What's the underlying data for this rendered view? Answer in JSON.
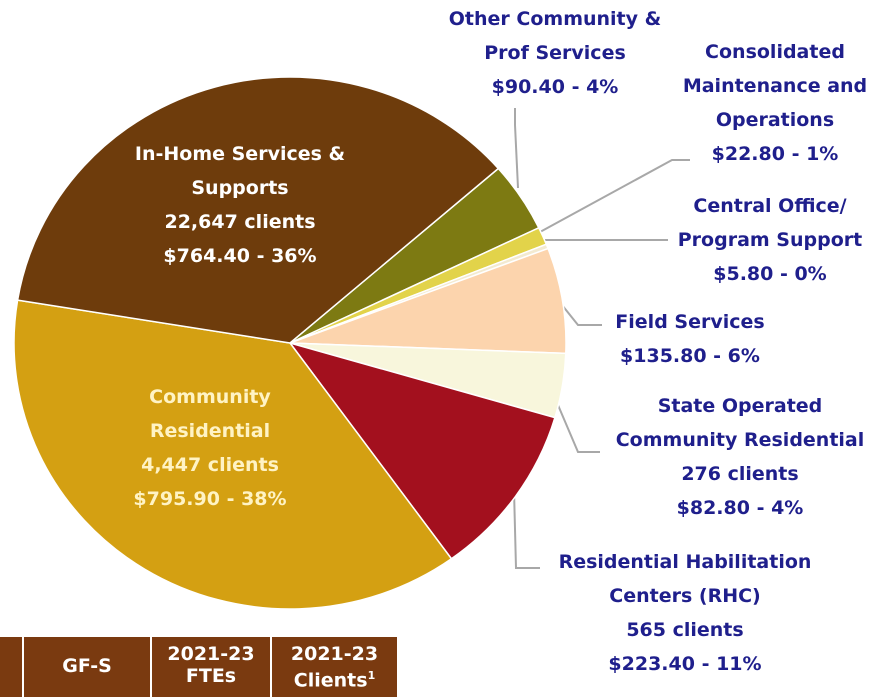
{
  "chart_data": {
    "type": "pie",
    "categories": [
      "Other Community & Prof Services",
      "Consolidated Maintenance and Operations",
      "Central Office/ Program Support",
      "Field Services",
      "State Operated Community Residential",
      "Residential Habilitation Centers (RHC)",
      "Community Residential",
      "In-Home Services & Supports"
    ],
    "values": [
      90.4,
      22.8,
      5.8,
      135.8,
      82.8,
      223.4,
      795.9,
      764.4
    ],
    "value_labels": [
      "$90.40 - 4%",
      "$22.80 - 1%",
      "$5.80 - 0%",
      "$135.80 - 6%",
      "$82.80 - 4%",
      "$223.40 - 11%",
      "$795.90 - 38%",
      "$764.40 - 36%"
    ],
    "client_labels": [
      null,
      null,
      null,
      null,
      "276 clients",
      "565 clients",
      "4,447 clients",
      "22,647 clients"
    ],
    "colors": [
      "#7d7a12",
      "#e2d34a",
      "#f3ead0",
      "#fcd4ad",
      "#f8f6dc",
      "#a3101e",
      "#d4a012",
      "#6e3c0c"
    ]
  },
  "table": {
    "headers": [
      "GF-S",
      "2021-23 FTEs",
      "2021-23 Clients"
    ],
    "footnote": "1"
  }
}
